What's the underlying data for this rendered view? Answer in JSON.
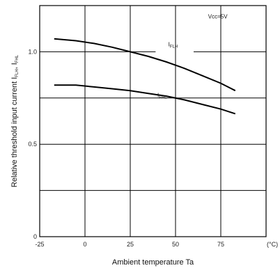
{
  "chart_data": {
    "type": "line",
    "title": "",
    "xlabel": "Ambient temperature Ta",
    "ylabel_prefix": "Relative threshold input current I",
    "ylabel_sub1": "FLH",
    "ylabel_mid": ", I",
    "ylabel_sub2": "FHL",
    "xlim": [
      -25,
      100
    ],
    "ylim": [
      0,
      1.25
    ],
    "x_ticks": [
      -25,
      0,
      25,
      50,
      75
    ],
    "x_tick_labels": [
      "-25",
      "0",
      "25",
      "50",
      "75"
    ],
    "x_unit": "(°C)",
    "y_ticks": [
      0,
      0.5,
      1.0
    ],
    "y_tick_labels": [
      "0",
      "0.5",
      "1.0"
    ],
    "grid": true,
    "annotation": "Vcc=5V",
    "series": [
      {
        "name_main": "I",
        "name_sub": "FLH",
        "x": [
          -17,
          -5,
          5,
          15,
          25,
          35,
          45,
          55,
          65,
          75,
          83
        ],
        "values": [
          1.07,
          1.06,
          1.045,
          1.025,
          1.0,
          0.975,
          0.945,
          0.91,
          0.87,
          0.83,
          0.79
        ]
      },
      {
        "name_main": "I",
        "name_sub": "FHL",
        "x": [
          -17,
          -5,
          5,
          15,
          25,
          35,
          45,
          55,
          65,
          75,
          83
        ],
        "values": [
          0.82,
          0.82,
          0.81,
          0.8,
          0.79,
          0.775,
          0.76,
          0.74,
          0.715,
          0.69,
          0.665
        ]
      }
    ]
  }
}
